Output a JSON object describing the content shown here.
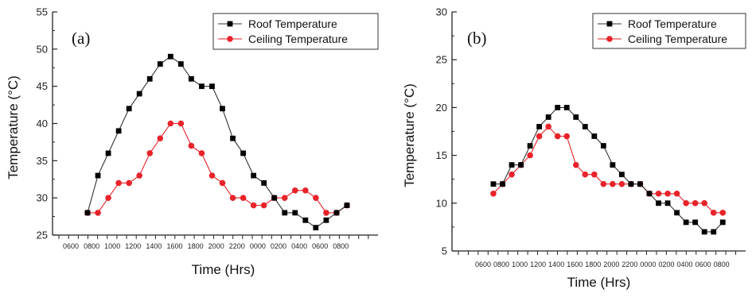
{
  "chart_data": [
    {
      "type": "line",
      "panel_label": "(a)",
      "xlabel": "Time (Hrs)",
      "ylabel": "Temperature (°C)",
      "ylim": [
        25,
        55
      ],
      "yticks": [
        25,
        30,
        35,
        40,
        45,
        50,
        55
      ],
      "x_tick_labels": [
        "0600",
        "0800",
        "1000",
        "1200",
        "1400",
        "1600",
        "1800",
        "2000",
        "2200",
        "0000",
        "0200",
        "0400",
        "0600",
        "0800"
      ],
      "legend_position": "top-right",
      "series": [
        {
          "name": "Roof Temperature",
          "color": "#000000",
          "marker": "square",
          "values": [
            28,
            33,
            36,
            39,
            42,
            44,
            46,
            48,
            49,
            48,
            46,
            45,
            45,
            42,
            38,
            36,
            33,
            32,
            30,
            28,
            28,
            27,
            26,
            27,
            28,
            29
          ]
        },
        {
          "name": "Ceiling Temperature",
          "color": "#e8232a",
          "marker": "circle",
          "values": [
            28,
            28,
            30,
            32,
            32,
            33,
            36,
            38,
            40,
            40,
            37,
            36,
            33,
            32,
            30,
            30,
            29,
            29,
            30,
            30,
            31,
            31,
            30,
            28,
            28,
            29
          ]
        }
      ]
    },
    {
      "type": "line",
      "panel_label": "(b)",
      "xlabel": "Time (Hrs)",
      "ylabel": "Temperature (°C)",
      "ylim": [
        5,
        30
      ],
      "yticks": [
        5,
        10,
        15,
        20,
        25,
        30
      ],
      "x_tick_labels": [
        "0600",
        "0800",
        "1000",
        "1200",
        "1400",
        "1600",
        "1800",
        "2000",
        "2200",
        "0000",
        "0200",
        "0400",
        "0600",
        "0800"
      ],
      "legend_position": "top-right",
      "series": [
        {
          "name": "Roof Temperature",
          "color": "#000000",
          "marker": "square",
          "values": [
            12,
            12,
            14,
            14,
            16,
            18,
            19,
            20,
            20,
            19,
            18,
            17,
            16,
            14,
            13,
            12,
            12,
            11,
            10,
            10,
            9,
            8,
            8,
            7,
            7,
            8
          ]
        },
        {
          "name": "Ceiling Temperature",
          "color": "#e8232a",
          "marker": "circle",
          "values": [
            11,
            12,
            13,
            14,
            15,
            17,
            18,
            17,
            17,
            14,
            13,
            13,
            12,
            12,
            12,
            12,
            12,
            11,
            11,
            11,
            11,
            10,
            10,
            10,
            9,
            9
          ]
        }
      ]
    }
  ]
}
